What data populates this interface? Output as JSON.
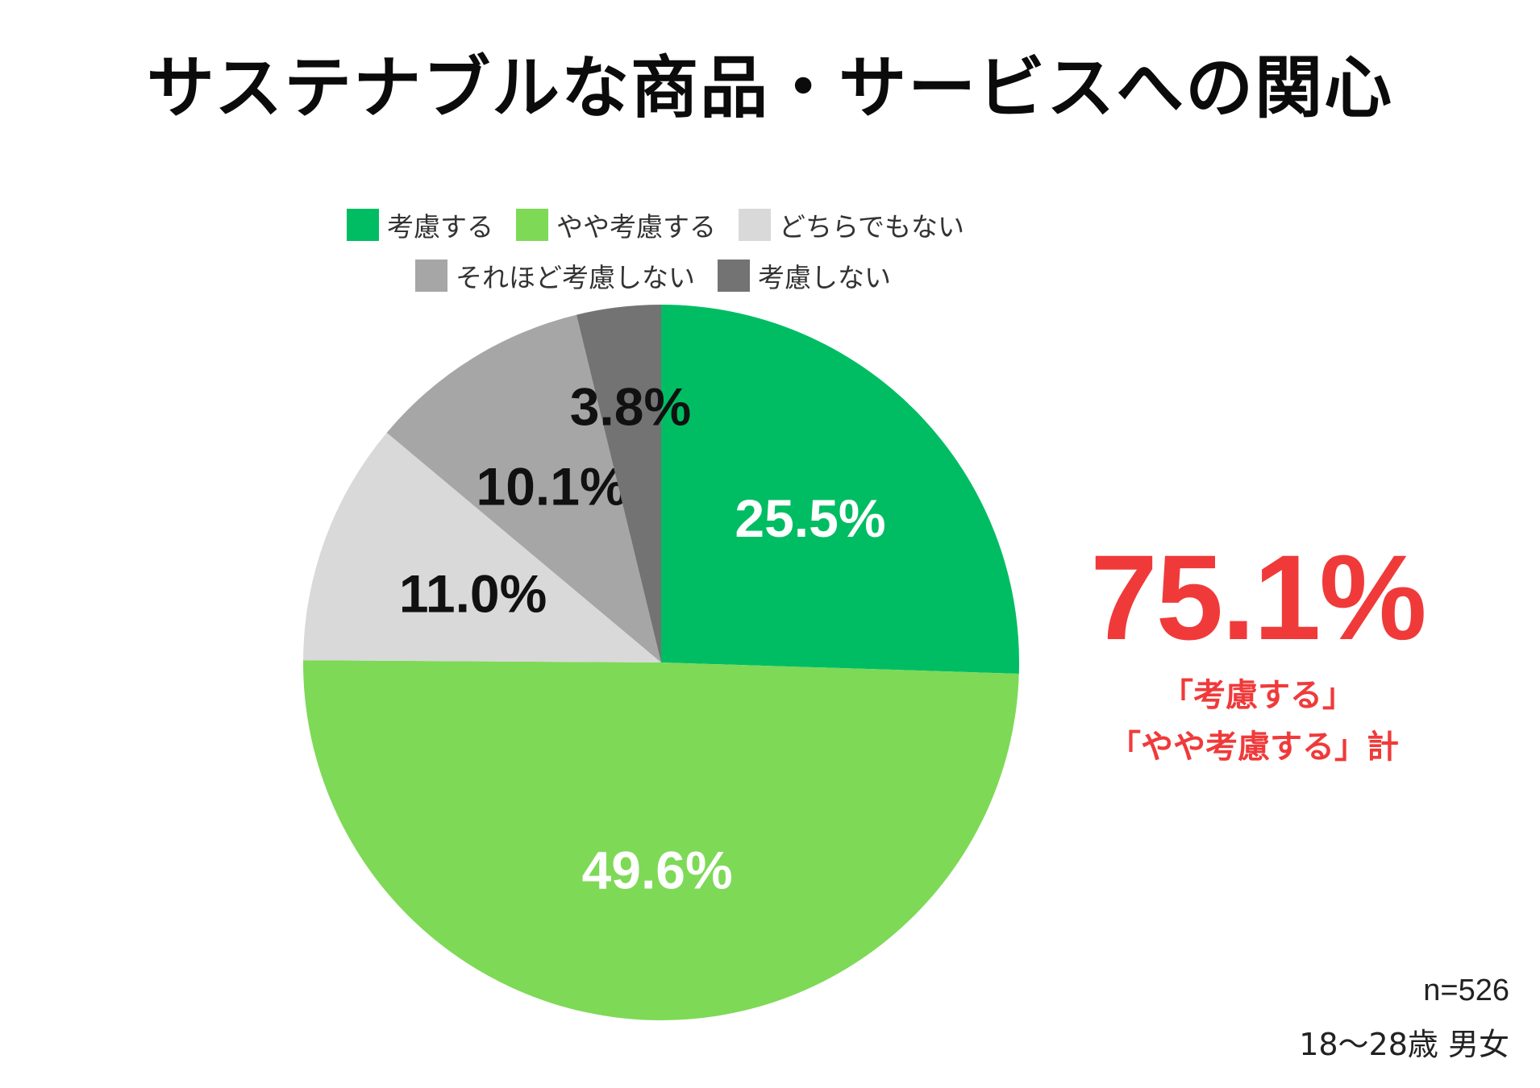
{
  "chart_data": {
    "type": "pie",
    "title": "サステナブルな商品・サービスへの関心",
    "categories": [
      "考慮する",
      "やや考慮する",
      "どちらでもない",
      "それほど考慮しない",
      "考慮しない"
    ],
    "values": [
      25.5,
      49.6,
      11.0,
      10.1,
      3.8
    ],
    "value_labels": [
      "25.5%",
      "49.6%",
      "11.0%",
      "10.1%",
      "3.8%"
    ],
    "colors": [
      "#00bd63",
      "#7ed957",
      "#d9d9d9",
      "#a6a6a6",
      "#737373"
    ],
    "label_colors": [
      "#ffffff",
      "#ffffff",
      "#111111",
      "#111111",
      "#111111"
    ],
    "legend_position": "top",
    "start_angle": "12 o'clock, clockwise"
  },
  "summary": {
    "value": "75.1%",
    "line1": "「考慮する」",
    "line2": "「やや考慮する」計",
    "color": "#f03a3a"
  },
  "notes": {
    "sample": "n=526",
    "demographic": "18〜28歳 男女"
  }
}
